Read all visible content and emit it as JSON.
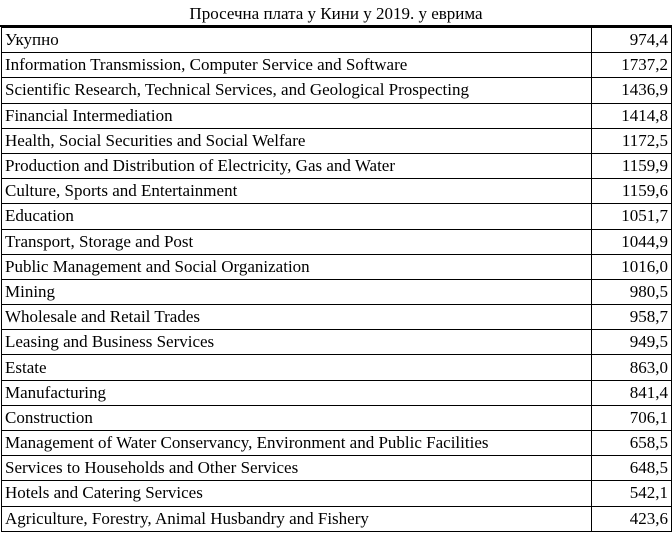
{
  "title": "Просечна плата у Кини у 2019. у еврима",
  "rows": [
    {
      "label": "Укупно",
      "value": "974,4"
    },
    {
      "label": "Information Transmission, Computer Service and Software",
      "value": "1737,2"
    },
    {
      "label": "Scientific Research, Technical Services, and Geological Prospecting",
      "value": "1436,9"
    },
    {
      "label": "Financial Intermediation",
      "value": "1414,8"
    },
    {
      "label": "Health, Social Securities and Social Welfare",
      "value": "1172,5"
    },
    {
      "label": "Production and Distribution of Electricity, Gas and Water",
      "value": "1159,9"
    },
    {
      "label": "Culture, Sports and Entertainment",
      "value": "1159,6"
    },
    {
      "label": "Education",
      "value": "1051,7"
    },
    {
      "label": "Transport, Storage and Post",
      "value": "1044,9"
    },
    {
      "label": "Public Management and Social Organization",
      "value": "1016,0"
    },
    {
      "label": "Mining",
      "value": "980,5"
    },
    {
      "label": "Wholesale and Retail Trades",
      "value": "958,7"
    },
    {
      "label": "Leasing and Business Services",
      "value": "949,5"
    },
    {
      "label": "Estate",
      "value": "863,0"
    },
    {
      "label": "Manufacturing",
      "value": "841,4"
    },
    {
      "label": "Construction",
      "value": "706,1"
    },
    {
      "label": "Management of Water Conservancy, Environment and Public Facilities",
      "value": "658,5"
    },
    {
      "label": "Services to Households and Other Services",
      "value": "648,5"
    },
    {
      "label": "Hotels and Catering Services",
      "value": "542,1"
    },
    {
      "label": "Agriculture, Forestry, Animal Husbandry and Fishery",
      "value": "423,6"
    }
  ]
}
